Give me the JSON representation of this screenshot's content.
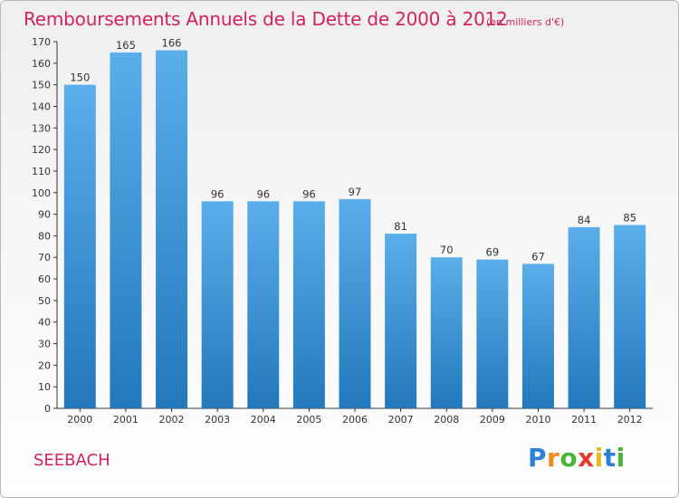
{
  "title": "Remboursements Annuels de la Dette de 2000 à 2012",
  "subtitle": "(en milliers d'€)",
  "commune": "SEEBACH",
  "logo": {
    "letters": [
      "P",
      "r",
      "o",
      "x",
      "i",
      "t",
      "i"
    ],
    "colors": [
      "#2f7fd6",
      "#f08a1c",
      "#49b53a",
      "#e23b2a",
      "#f0b41c",
      "#2f7fd6",
      "#49b53a"
    ]
  },
  "colors": {
    "bar_top": "#5aaeea",
    "bar_bottom": "#2378bc",
    "title": "#d0245a"
  },
  "chart_data": {
    "type": "bar",
    "title": "Remboursements Annuels de la Dette de 2000 à 2012",
    "subtitle": "(en milliers d'€)",
    "categories": [
      "2000",
      "2001",
      "2002",
      "2003",
      "2004",
      "2005",
      "2006",
      "2007",
      "2008",
      "2009",
      "2010",
      "2011",
      "2012"
    ],
    "values": [
      150,
      165,
      166,
      96,
      96,
      96,
      97,
      81,
      70,
      69,
      67,
      84,
      85
    ],
    "ylim": [
      0,
      170
    ],
    "yticks": [
      0,
      10,
      20,
      30,
      40,
      50,
      60,
      70,
      80,
      90,
      100,
      110,
      120,
      130,
      140,
      150,
      160,
      170
    ],
    "xlabel": "",
    "ylabel": "",
    "grid": false,
    "legend": "none"
  }
}
